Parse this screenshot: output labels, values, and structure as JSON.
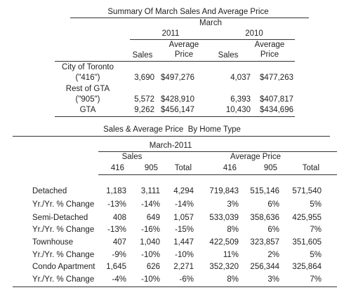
{
  "table1": {
    "title": "Summary Of March Sales And Average Price",
    "month": "March",
    "years": [
      "2011",
      "2010"
    ],
    "headers": [
      "Sales",
      "Average Price"
    ],
    "rows": [
      {
        "label": "City of Toronto",
        "sublabel": "(\"416\")",
        "values": [
          "3,690",
          "$497,276",
          "4,037",
          "$477,263"
        ]
      },
      {
        "label": "Rest of GTA",
        "sublabel": "(\"905\")",
        "values": [
          "5,572",
          "$428,910",
          "6,393",
          "$407,817"
        ]
      },
      {
        "label": "GTA",
        "values": [
          "9,262",
          "$456,147",
          "10,430",
          "$434,696"
        ]
      }
    ]
  },
  "table2": {
    "title": "Sales & Average Price  By Home Type",
    "period": "March-2011",
    "groups": [
      "Sales",
      "Average Price"
    ],
    "columns": [
      "416",
      "905",
      "Total",
      "416",
      "905",
      "Total"
    ],
    "rows": [
      {
        "label": "Detached",
        "values": [
          "1,183",
          "3,111",
          "4,294",
          "719,843",
          "515,146",
          "571,540"
        ]
      },
      {
        "label": "Yr./Yr. % Change",
        "values": [
          "-13%",
          "-14%",
          "-14%",
          "3%",
          "6%",
          "5%"
        ]
      },
      {
        "label": "Semi-Detached",
        "values": [
          "408",
          "649",
          "1,057",
          "533,039",
          "358,636",
          "425,955"
        ]
      },
      {
        "label": "Yr./Yr. % Change",
        "values": [
          "-13%",
          "-16%",
          "-15%",
          "8%",
          "6%",
          "7%"
        ]
      },
      {
        "label": "Townhouse",
        "values": [
          "407",
          "1,040",
          "1,447",
          "422,509",
          "323,857",
          "351,605"
        ]
      },
      {
        "label": "Yr./Yr. % Change",
        "values": [
          "-9%",
          "-10%",
          "-10%",
          "11%",
          "2%",
          "5%"
        ]
      },
      {
        "label": "Condo Apartment",
        "values": [
          "1,645",
          "626",
          "2,271",
          "352,320",
          "256,344",
          "325,864"
        ]
      },
      {
        "label": "Yr./Yr. % Change",
        "values": [
          "-4%",
          "-10%",
          "-6%",
          "8%",
          "3%",
          "7%"
        ]
      }
    ]
  }
}
